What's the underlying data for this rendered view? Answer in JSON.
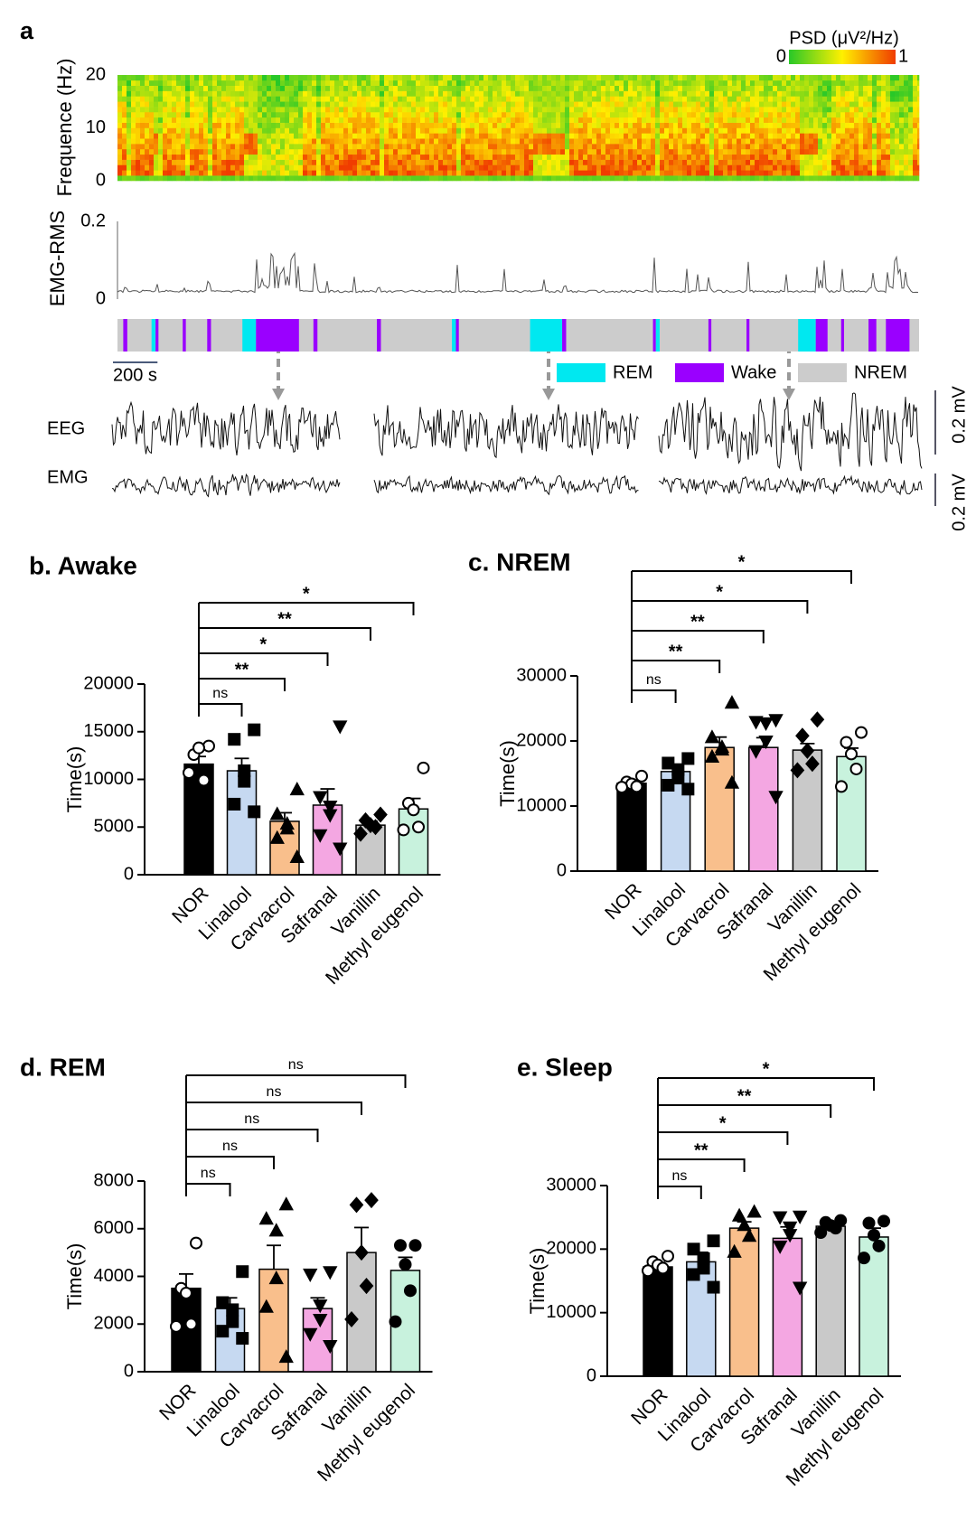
{
  "panel_a": {
    "label": "a",
    "spectrogram": {
      "ylabel": "Frequence (Hz)",
      "ylim": [
        0,
        20
      ],
      "yticks": [
        0,
        10,
        20
      ],
      "colorbar": {
        "title": "PSD (μV²/Hz)",
        "ticks": [
          0,
          1
        ]
      }
    },
    "emg_rms": {
      "ylabel": "EMG-RMS",
      "ylim": [
        0,
        0.2
      ],
      "yticks": [
        0,
        0.2
      ]
    },
    "hypnogram": {
      "xlim": [
        0,
        3600
      ],
      "states": [
        {
          "name": "REM",
          "color": "#00e8f0"
        },
        {
          "name": "Wake",
          "color": "#9a00ff"
        },
        {
          "name": "NREM",
          "color": "#cccccc"
        }
      ],
      "segments": [
        {
          "state": "Wake",
          "start": 26,
          "end": 44
        },
        {
          "state": "REM",
          "start": 153,
          "end": 171
        },
        {
          "state": "Wake",
          "start": 171,
          "end": 184
        },
        {
          "state": "Wake",
          "start": 293,
          "end": 307
        },
        {
          "state": "Wake",
          "start": 403,
          "end": 420
        },
        {
          "state": "REM",
          "start": 561,
          "end": 622
        },
        {
          "state": "Wake",
          "start": 622,
          "end": 815
        },
        {
          "state": "Wake",
          "start": 880,
          "end": 898
        },
        {
          "state": "Wake",
          "start": 1165,
          "end": 1183
        },
        {
          "state": "REM",
          "start": 1502,
          "end": 1520
        },
        {
          "state": "Wake",
          "start": 1520,
          "end": 1533
        },
        {
          "state": "REM",
          "start": 1853,
          "end": 1997
        },
        {
          "state": "Wake",
          "start": 1997,
          "end": 2015
        },
        {
          "state": "Wake",
          "start": 2405,
          "end": 2418
        },
        {
          "state": "REM",
          "start": 2418,
          "end": 2435
        },
        {
          "state": "Wake",
          "start": 2654,
          "end": 2667
        },
        {
          "state": "Wake",
          "start": 2825,
          "end": 2838
        },
        {
          "state": "REM",
          "start": 3057,
          "end": 3136
        },
        {
          "state": "Wake",
          "start": 3136,
          "end": 3189
        },
        {
          "state": "Wake",
          "start": 3250,
          "end": 3263
        },
        {
          "state": "Wake",
          "start": 3373,
          "end": 3408
        },
        {
          "state": "Wake",
          "start": 3451,
          "end": 3557
        }
      ],
      "scale_bar": {
        "value": 200,
        "label": "200 s"
      }
    },
    "traces": {
      "labels": [
        "EEG",
        "EMG"
      ],
      "scale_bars": [
        "0.2 mV",
        "0.2 mV"
      ]
    }
  },
  "chart_data": [
    {
      "type": "bar",
      "title": "b. Awake",
      "ylabel": "Time(s)",
      "categories": [
        "NOR",
        "Linalool",
        "Carvacrol",
        "Safranal",
        "Vanillin",
        "Methyl eugenol"
      ],
      "values": [
        11600,
        10900,
        5600,
        7300,
        5200,
        6900
      ],
      "errors": [
        800,
        1300,
        900,
        1700,
        400,
        1100
      ],
      "points": [
        [
          13500,
          12600,
          13300,
          9900,
          10700
        ],
        [
          15200,
          14200,
          10900,
          9800,
          7400,
          6600
        ],
        [
          8900,
          6300,
          5300,
          4800,
          3800,
          1800
        ],
        [
          15600,
          8200,
          7200,
          6300,
          4200,
          2800
        ],
        [
          6300,
          5700,
          5200,
          5000,
          4300
        ],
        [
          11200,
          7500,
          6800,
          5000,
          4700
        ]
      ],
      "colors": [
        "#000000",
        "#c6d9f1",
        "#f9bf8c",
        "#f4a7e2",
        "#c9c9c9",
        "#c8f2dd"
      ],
      "markers": [
        "circle-open",
        "square",
        "triangle",
        "triangle-down",
        "diamond",
        "circle-open"
      ],
      "significance": [
        "ns",
        "**",
        "*",
        "**",
        "*"
      ],
      "ylim": [
        0,
        20000
      ],
      "yticks": [
        0,
        5000,
        10000,
        15000,
        20000
      ]
    },
    {
      "type": "bar",
      "title": "c. NREM",
      "ylabel": "Time(s)",
      "categories": [
        "NOR",
        "Linalool",
        "Carvacrol",
        "Safranal",
        "Vanillin",
        "Methyl eugenol"
      ],
      "values": [
        13500,
        15300,
        19000,
        19000,
        18600,
        17600
      ],
      "errors": [
        500,
        1100,
        1600,
        1500,
        1000,
        1300
      ],
      "points": [
        [
          14600,
          13700,
          13400,
          13000,
          12900
        ],
        [
          17300,
          16600,
          15600,
          14300,
          13200,
          12600
        ],
        [
          25800,
          20500,
          19000,
          18600,
          17500,
          13500
        ],
        [
          23300,
          23000,
          22800,
          20000,
          18500,
          11500
        ],
        [
          23300,
          20800,
          18500,
          16500,
          15500
        ],
        [
          21300,
          19800,
          18000,
          15700,
          13000
        ]
      ],
      "colors": [
        "#000000",
        "#c6d9f1",
        "#f9bf8c",
        "#f4a7e2",
        "#c9c9c9",
        "#c8f2dd"
      ],
      "markers": [
        "circle-open",
        "square",
        "triangle",
        "triangle-down",
        "diamond",
        "circle-open"
      ],
      "significance": [
        "ns",
        "**",
        "**",
        "*",
        "*"
      ],
      "ylim": [
        0,
        30000
      ],
      "yticks": [
        0,
        10000,
        20000,
        30000
      ]
    },
    {
      "type": "bar",
      "title": "d. REM",
      "ylabel": "Time(s)",
      "categories": [
        "NOR",
        "Linalool",
        "Carvacrol",
        "Safranal",
        "Vanillin",
        "Methyl eugenol"
      ],
      "values": [
        3500,
        2650,
        4300,
        2650,
        5000,
        4250
      ],
      "errors": [
        600,
        450,
        1000,
        450,
        1050,
        550
      ],
      "points": [
        [
          5400,
          3500,
          3300,
          2000,
          1900
        ],
        [
          4200,
          2900,
          2600,
          2100,
          1700,
          1400
        ],
        [
          7000,
          6400,
          5900,
          3900,
          2700,
          600
        ],
        [
          4200,
          4100,
          2800,
          2200,
          1600,
          1100
        ],
        [
          7200,
          7000,
          5000,
          3600,
          2200
        ],
        [
          5300,
          5300,
          4500,
          3400,
          2100
        ]
      ],
      "colors": [
        "#000000",
        "#c6d9f1",
        "#f9bf8c",
        "#f4a7e2",
        "#c9c9c9",
        "#c8f2dd"
      ],
      "markers": [
        "circle-open",
        "square",
        "triangle",
        "triangle-down",
        "diamond",
        "circle"
      ],
      "significance": [
        "ns",
        "ns",
        "ns",
        "ns",
        "ns"
      ],
      "ylim": [
        0,
        8000
      ],
      "yticks": [
        0,
        2000,
        4000,
        6000,
        8000
      ]
    },
    {
      "type": "bar",
      "title": "e. Sleep",
      "ylabel": "Time(s)",
      "categories": [
        "NOR",
        "Linalool",
        "Carvacrol",
        "Safranal",
        "Vanillin",
        "Methyl eugenol"
      ],
      "values": [
        17200,
        18000,
        23300,
        21700,
        23600,
        21900
      ],
      "errors": [
        700,
        1500,
        1000,
        1800,
        400,
        1400
      ],
      "points": [
        [
          18900,
          18000,
          17500,
          17000,
          16600
        ],
        [
          21300,
          20000,
          18500,
          17000,
          16000,
          14000
        ],
        [
          25800,
          25200,
          23700,
          22000,
          19500
        ],
        [
          25200,
          25100,
          23500,
          22300,
          20500,
          14000
        ],
        [
          24500,
          24200,
          23700,
          23300,
          22600
        ],
        [
          24400,
          24100,
          22200,
          20500,
          18600
        ]
      ],
      "colors": [
        "#000000",
        "#c6d9f1",
        "#f9bf8c",
        "#f4a7e2",
        "#c9c9c9",
        "#c8f2dd"
      ],
      "markers": [
        "circle-open",
        "square",
        "triangle",
        "triangle-down",
        "circle",
        "circle"
      ],
      "significance": [
        "ns",
        "**",
        "*",
        "**",
        "*"
      ],
      "ylim": [
        0,
        30000
      ],
      "yticks": [
        0,
        10000,
        20000,
        30000
      ]
    }
  ]
}
